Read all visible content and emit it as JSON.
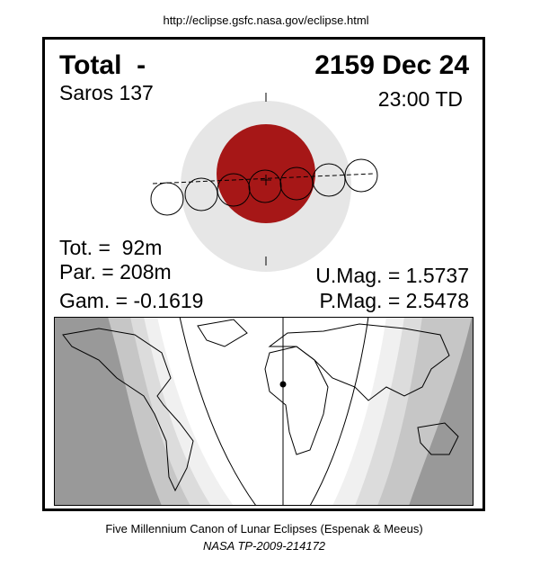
{
  "header": {
    "url": "http://eclipse.gsfc.nasa.gov/eclipse.html"
  },
  "panel": {
    "kind": "Total  -",
    "date": "2159 Dec 24",
    "saros": "Saros 137",
    "time": "23:00 TD",
    "tot": "Tot. =  92m",
    "par": "Par. = 208m",
    "gam": "Gam. = -0.1619",
    "umag": "U.Mag. = 1.5737",
    "pmag": "P.Mag. = 2.5478"
  },
  "footer": {
    "line1": "Five Millennium Canon of Lunar Eclipses (Espenak & Meeus)",
    "line2": "NASA TP-2009-214172"
  }
}
